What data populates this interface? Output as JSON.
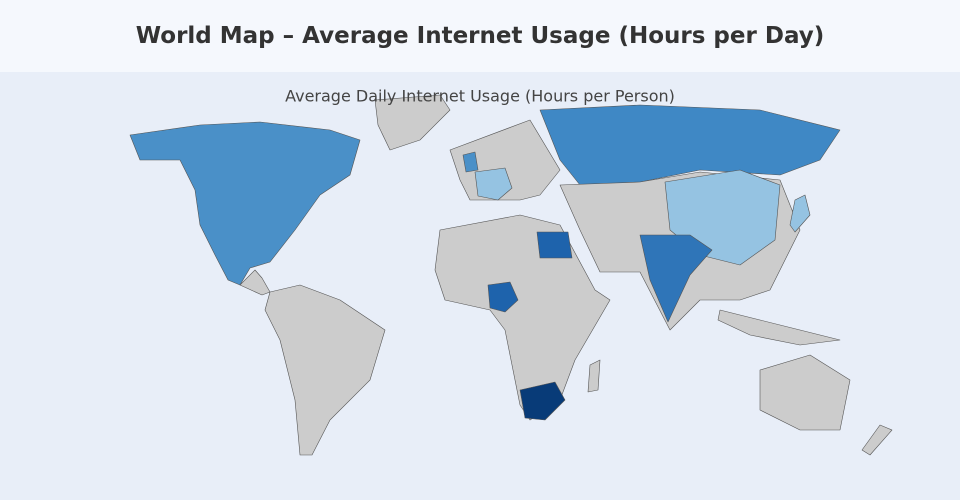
{
  "header": {
    "title": "World Map – Average Internet Usage (Hours per Day)"
  },
  "map": {
    "title": "Average Daily Internet Usage (Hours per Person)",
    "land_color": "#cccccc",
    "border_color": "#555555",
    "ocean_color": "#e8eef8",
    "shade_colors": [
      "#95c3e2",
      "#4a90c8",
      "#3f88c5",
      "#2f75b8",
      "#1e63ac",
      "#083b78"
    ]
  }
}
